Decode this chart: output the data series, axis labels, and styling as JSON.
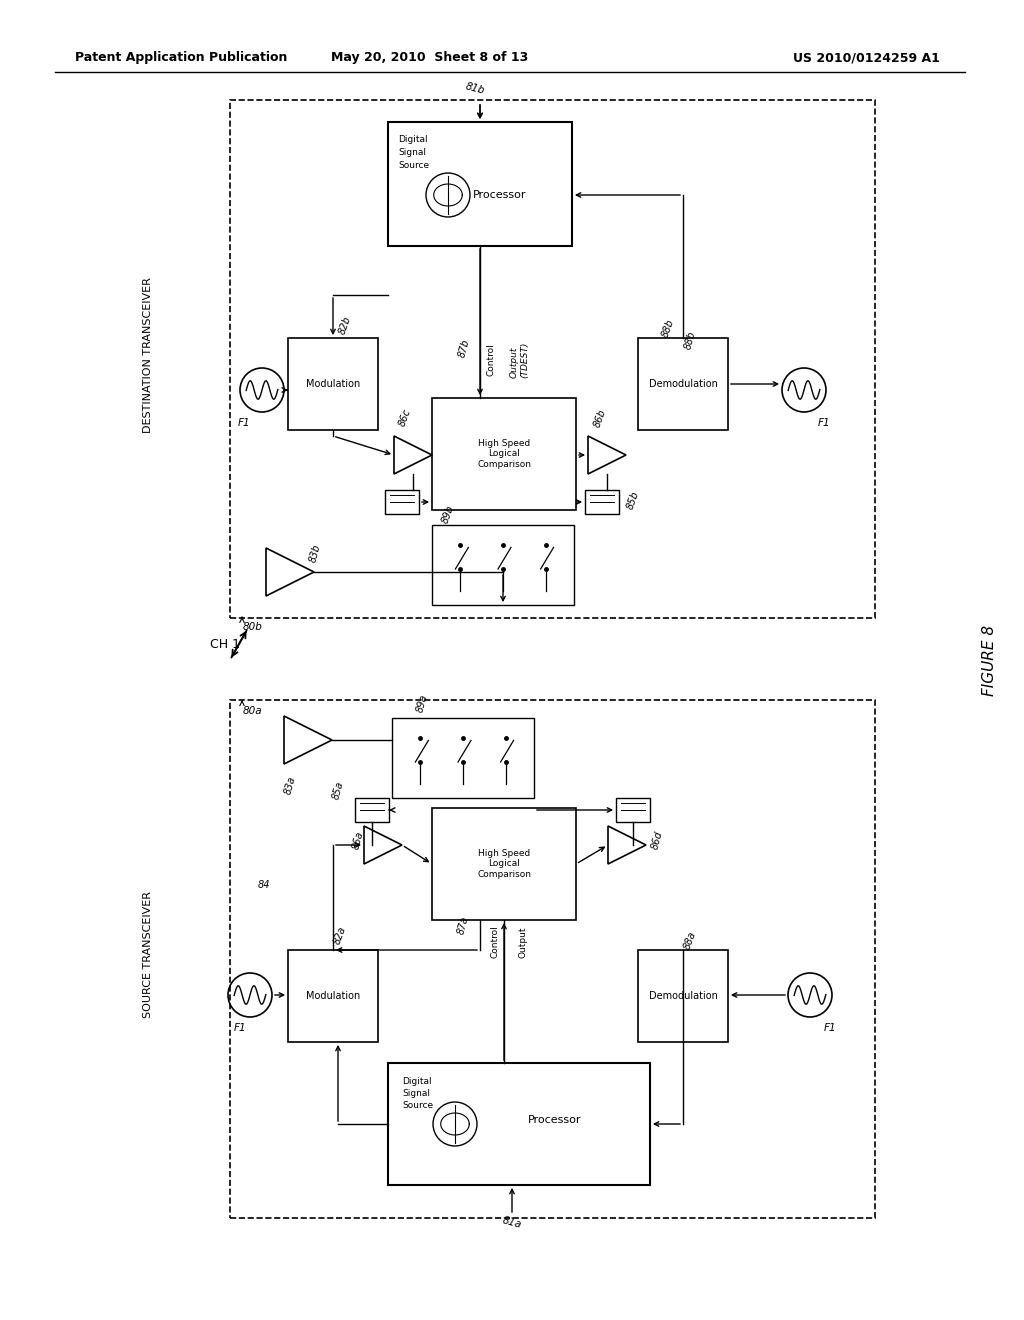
{
  "bg_color": "#ffffff",
  "header_left": "Patent Application Publication",
  "header_center": "May 20, 2010  Sheet 8 of 13",
  "header_right": "US 2010/0124259 A1",
  "figure_label": "FIGURE 8"
}
